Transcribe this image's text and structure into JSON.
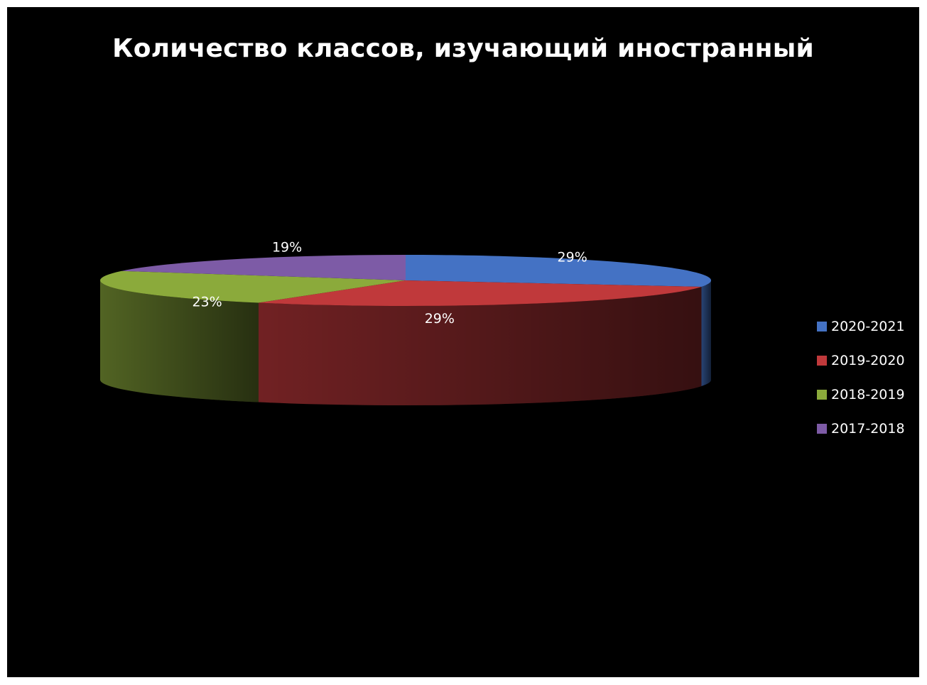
{
  "chart_data": {
    "type": "pie",
    "title": "Количество классов, изучающий иностранный",
    "categories": [
      "2020-2021",
      "2019-2020",
      "2018-2019",
      "2017-2018"
    ],
    "values": [
      29,
      29,
      23,
      19
    ],
    "data_labels": [
      "29%",
      "29%",
      "23%",
      "19%"
    ],
    "colors": [
      "#4472C4",
      "#C0393B",
      "#8BAA3B",
      "#7D5BA6"
    ],
    "legend_position": "right",
    "style": "3d"
  }
}
